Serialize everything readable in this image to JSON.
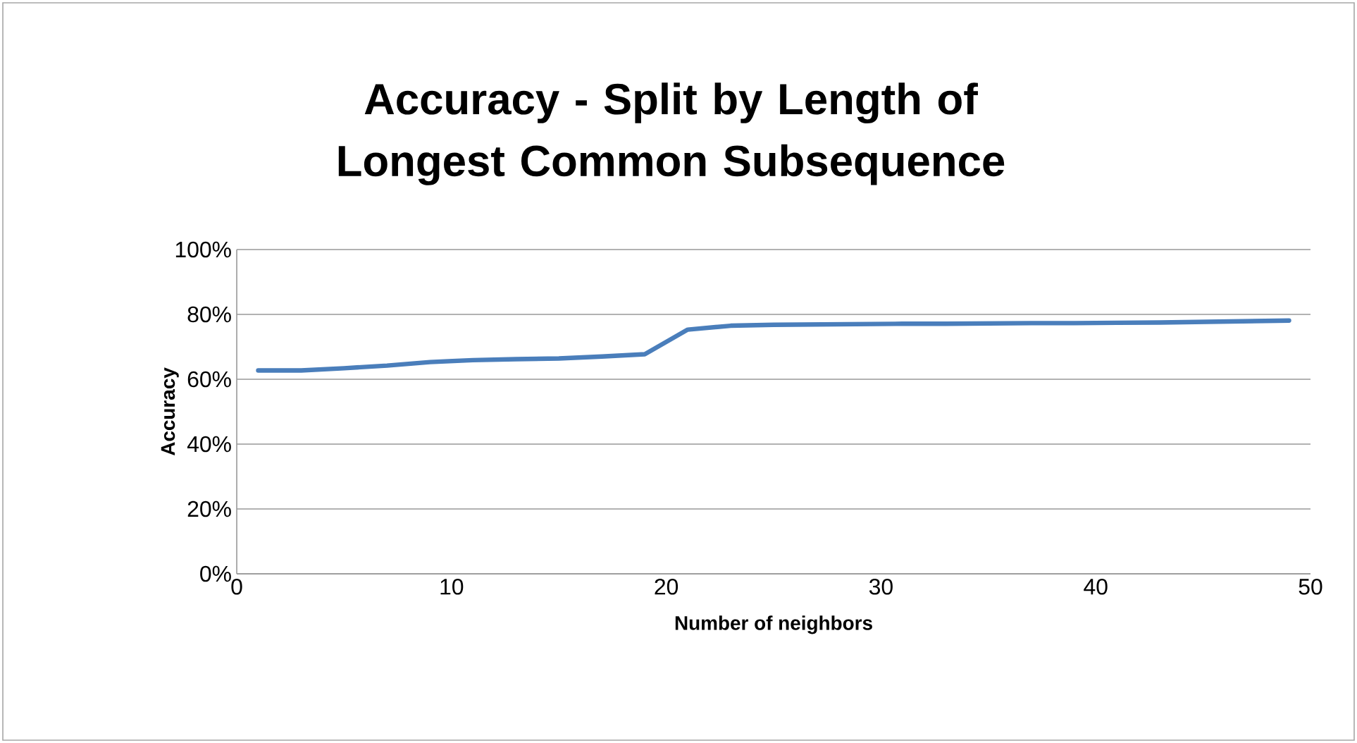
{
  "chart_data": {
    "type": "line",
    "title": "Accuracy - Split by Length of Longest Common Subsequence",
    "xlabel": "Number of neighbors",
    "ylabel": "Accuracy",
    "x": [
      1,
      3,
      5,
      7,
      9,
      11,
      13,
      15,
      17,
      19,
      21,
      23,
      25,
      27,
      29,
      31,
      33,
      35,
      37,
      39,
      41,
      43,
      45,
      47,
      49
    ],
    "series": [
      {
        "color": "#4a7ebb",
        "values": [
          62.7,
          62.7,
          63.4,
          64.2,
          65.3,
          65.9,
          66.2,
          66.4,
          67.0,
          67.7,
          75.3,
          76.5,
          76.8,
          76.9,
          77.0,
          77.1,
          77.1,
          77.2,
          77.3,
          77.3,
          77.4,
          77.5,
          77.7,
          77.9,
          78.1
        ]
      }
    ],
    "xlim": [
      0,
      50
    ],
    "xticks": [
      0,
      10,
      20,
      30,
      40,
      50
    ],
    "ylim": [
      0,
      100
    ],
    "yticks": [
      {
        "value": 0,
        "label": "0%"
      },
      {
        "value": 20,
        "label": "20%"
      },
      {
        "value": 40,
        "label": "40%"
      },
      {
        "value": 60,
        "label": "60%"
      },
      {
        "value": 80,
        "label": "80%"
      },
      {
        "value": 100,
        "label": "100%"
      }
    ],
    "grid": "y",
    "marker": "none",
    "line_style": "solid"
  }
}
